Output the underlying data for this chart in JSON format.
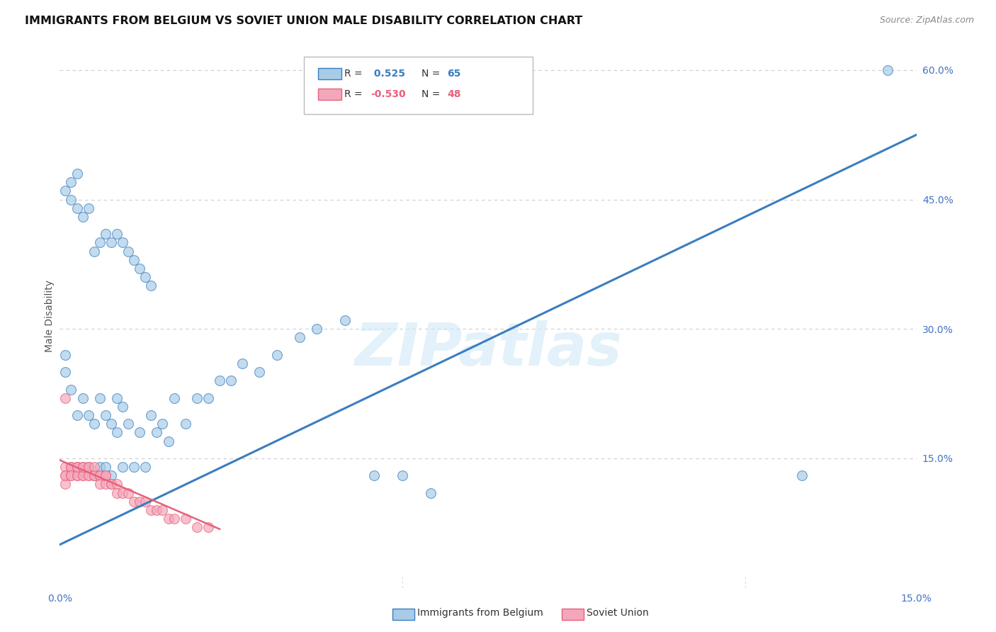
{
  "title": "IMMIGRANTS FROM BELGIUM VS SOVIET UNION MALE DISABILITY CORRELATION CHART",
  "source": "Source: ZipAtlas.com",
  "ylabel": "Male Disability",
  "x_min": 0.0,
  "x_max": 0.15,
  "y_min": 0.0,
  "y_max": 0.63,
  "y_ticks": [
    0.0,
    0.15,
    0.3,
    0.45,
    0.6
  ],
  "y_tick_labels": [
    "",
    "15.0%",
    "30.0%",
    "45.0%",
    "60.0%"
  ],
  "x_ticks": [
    0.0,
    0.03,
    0.06,
    0.09,
    0.12,
    0.15
  ],
  "x_tick_labels": [
    "0.0%",
    "",
    "",
    "",
    "",
    "15.0%"
  ],
  "belgium_R": 0.525,
  "belgium_N": 65,
  "soviet_R": -0.53,
  "soviet_N": 48,
  "belgium_color": "#a8cce8",
  "soviet_color": "#f4a7bb",
  "trend_belgium_color": "#3a7ebf",
  "trend_soviet_color": "#e8607a",
  "watermark": "ZIPatlas",
  "belgium_x": [
    0.001,
    0.001,
    0.002,
    0.002,
    0.003,
    0.003,
    0.004,
    0.004,
    0.005,
    0.005,
    0.006,
    0.006,
    0.007,
    0.007,
    0.008,
    0.008,
    0.009,
    0.009,
    0.01,
    0.01,
    0.011,
    0.011,
    0.012,
    0.013,
    0.014,
    0.015,
    0.016,
    0.017,
    0.018,
    0.019,
    0.02,
    0.022,
    0.024,
    0.026,
    0.028,
    0.03,
    0.032,
    0.035,
    0.038,
    0.042,
    0.045,
    0.05,
    0.055,
    0.06,
    0.065,
    0.002,
    0.003,
    0.004,
    0.005,
    0.006,
    0.007,
    0.008,
    0.009,
    0.01,
    0.011,
    0.012,
    0.013,
    0.014,
    0.015,
    0.016,
    0.001,
    0.002,
    0.003,
    0.145,
    0.13
  ],
  "belgium_y": [
    0.27,
    0.25,
    0.23,
    0.14,
    0.2,
    0.14,
    0.22,
    0.14,
    0.2,
    0.14,
    0.19,
    0.13,
    0.22,
    0.14,
    0.2,
    0.14,
    0.19,
    0.13,
    0.22,
    0.18,
    0.21,
    0.14,
    0.19,
    0.14,
    0.18,
    0.14,
    0.2,
    0.18,
    0.19,
    0.17,
    0.22,
    0.19,
    0.22,
    0.22,
    0.24,
    0.24,
    0.26,
    0.25,
    0.27,
    0.29,
    0.3,
    0.31,
    0.13,
    0.13,
    0.11,
    0.45,
    0.44,
    0.43,
    0.44,
    0.39,
    0.4,
    0.41,
    0.4,
    0.41,
    0.4,
    0.39,
    0.38,
    0.37,
    0.36,
    0.35,
    0.46,
    0.47,
    0.48,
    0.6,
    0.13
  ],
  "soviet_x": [
    0.001,
    0.001,
    0.001,
    0.001,
    0.001,
    0.002,
    0.002,
    0.002,
    0.002,
    0.003,
    0.003,
    0.003,
    0.003,
    0.003,
    0.004,
    0.004,
    0.004,
    0.004,
    0.005,
    0.005,
    0.005,
    0.005,
    0.006,
    0.006,
    0.006,
    0.007,
    0.007,
    0.007,
    0.008,
    0.008,
    0.008,
    0.009,
    0.009,
    0.01,
    0.01,
    0.011,
    0.012,
    0.013,
    0.014,
    0.015,
    0.016,
    0.017,
    0.018,
    0.019,
    0.02,
    0.022,
    0.024,
    0.026
  ],
  "soviet_y": [
    0.14,
    0.13,
    0.12,
    0.13,
    0.22,
    0.14,
    0.13,
    0.14,
    0.13,
    0.14,
    0.13,
    0.14,
    0.13,
    0.14,
    0.13,
    0.14,
    0.13,
    0.14,
    0.13,
    0.14,
    0.13,
    0.14,
    0.13,
    0.14,
    0.13,
    0.13,
    0.13,
    0.12,
    0.13,
    0.12,
    0.13,
    0.12,
    0.12,
    0.12,
    0.11,
    0.11,
    0.11,
    0.1,
    0.1,
    0.1,
    0.09,
    0.09,
    0.09,
    0.08,
    0.08,
    0.08,
    0.07,
    0.07
  ],
  "background_color": "#ffffff",
  "grid_color": "#cccccc",
  "axis_color": "#4472c4",
  "title_fontsize": 11.5,
  "source_fontsize": 9,
  "legend_fontsize": 10,
  "trend_bel_x0": 0.0,
  "trend_bel_y0": 0.05,
  "trend_bel_x1": 0.15,
  "trend_bel_y1": 0.525,
  "trend_sov_x0": 0.0,
  "trend_sov_y0": 0.148,
  "trend_sov_x1": 0.028,
  "trend_sov_y1": 0.068
}
